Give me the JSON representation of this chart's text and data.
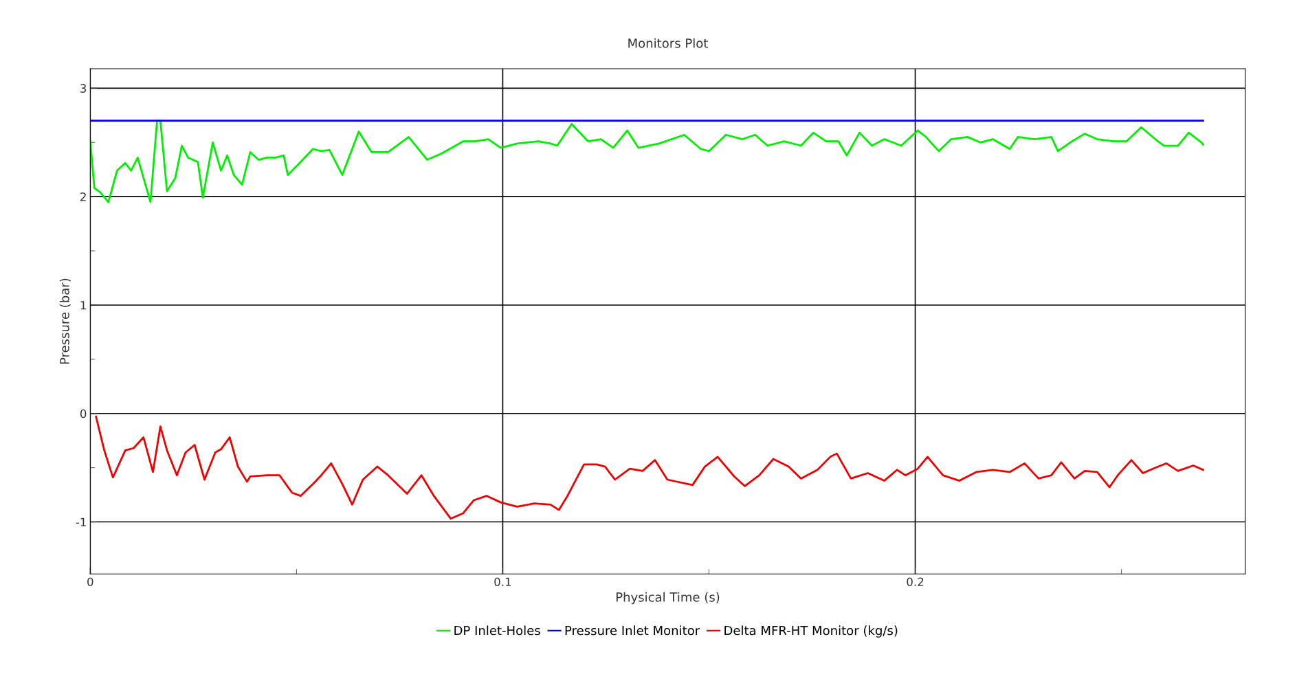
{
  "chart_data": {
    "type": "line",
    "title": "Monitors Plot",
    "xlabel": "Physical Time (s)",
    "ylabel": "Pressure (bar)",
    "xlim": [
      0,
      0.28
    ],
    "ylim": [
      -1.48,
      3.18
    ],
    "xticks": [
      0,
      0.1,
      0.2,
      {
        "value": 0.05,
        "label": null
      },
      {
        "value": 0.15,
        "label": null
      },
      {
        "value": 0.25,
        "label": null
      }
    ],
    "yticks": [
      -1,
      0,
      1,
      2,
      3,
      {
        "value": -0.5,
        "label": null
      },
      {
        "value": 0.5,
        "label": null
      },
      {
        "value": 1.5,
        "label": null
      },
      {
        "value": 2.5,
        "label": null
      }
    ],
    "grid": true,
    "legend": "bottom",
    "marker": "none",
    "line_style": "solid",
    "series": [
      {
        "name": "DP Inlet-Holes",
        "color": "#00ee00",
        "x": [
          0,
          0.001,
          0.0024,
          0.0044,
          0.0065,
          0.0085,
          0.0099,
          0.0115,
          0.0146,
          0.0162,
          0.017,
          0.0186,
          0.0206,
          0.0222,
          0.0237,
          0.0261,
          0.0273,
          0.0297,
          0.0317,
          0.0332,
          0.0348,
          0.0368,
          0.0388,
          0.0408,
          0.0429,
          0.0449,
          0.0469,
          0.0479,
          0.051,
          0.054,
          0.056,
          0.058,
          0.0611,
          0.0651,
          0.0682,
          0.0722,
          0.0772,
          0.0817,
          0.0853,
          0.0904,
          0.0934,
          0.0965,
          0.0995,
          0.1035,
          0.1086,
          0.1116,
          0.1132,
          0.1167,
          0.1207,
          0.1238,
          0.1268,
          0.1302,
          0.1329,
          0.1379,
          0.144,
          0.148,
          0.15,
          0.1541,
          0.1581,
          0.1612,
          0.1642,
          0.1682,
          0.1723,
          0.1753,
          0.1784,
          0.1814,
          0.1834,
          0.1865,
          0.1895,
          0.1925,
          0.1966,
          0.2006,
          0.2026,
          0.2057,
          0.2087,
          0.2127,
          0.2158,
          0.2188,
          0.2229,
          0.2249,
          0.2289,
          0.233,
          0.2346,
          0.238,
          0.2411,
          0.2441,
          0.2481,
          0.2512,
          0.2548,
          0.2582,
          0.2603,
          0.2637,
          0.2663,
          0.2694,
          0.2698
        ],
        "values": [
          2.51,
          2.08,
          2.04,
          1.95,
          2.24,
          2.31,
          2.24,
          2.36,
          1.95,
          2.7,
          2.7,
          2.05,
          2.17,
          2.47,
          2.36,
          2.32,
          1.99,
          2.5,
          2.24,
          2.38,
          2.2,
          2.11,
          2.41,
          2.34,
          2.36,
          2.36,
          2.38,
          2.2,
          2.32,
          2.44,
          2.42,
          2.43,
          2.2,
          2.6,
          2.41,
          2.41,
          2.55,
          2.34,
          2.4,
          2.51,
          2.51,
          2.53,
          2.45,
          2.49,
          2.51,
          2.49,
          2.47,
          2.67,
          2.51,
          2.53,
          2.45,
          2.61,
          2.45,
          2.49,
          2.57,
          2.44,
          2.42,
          2.57,
          2.53,
          2.57,
          2.47,
          2.51,
          2.47,
          2.59,
          2.51,
          2.51,
          2.38,
          2.59,
          2.47,
          2.53,
          2.47,
          2.61,
          2.55,
          2.42,
          2.53,
          2.55,
          2.5,
          2.53,
          2.44,
          2.55,
          2.53,
          2.55,
          2.42,
          2.51,
          2.58,
          2.53,
          2.51,
          2.51,
          2.64,
          2.53,
          2.47,
          2.47,
          2.59,
          2.5,
          2.48
        ]
      },
      {
        "name": "Pressure Inlet Monitor",
        "color": "#0000ee",
        "x": [
          0,
          0.2698
        ],
        "values": [
          2.7,
          2.7
        ]
      },
      {
        "name": "Delta MFR-HT Monitor (kg/s)",
        "color": "#ee0000",
        "x": [
          0.0014,
          0.0034,
          0.0055,
          0.0085,
          0.0105,
          0.0129,
          0.0152,
          0.017,
          0.0186,
          0.021,
          0.0231,
          0.0253,
          0.0277,
          0.0303,
          0.0317,
          0.0338,
          0.0358,
          0.038,
          0.0388,
          0.0429,
          0.0459,
          0.0489,
          0.051,
          0.054,
          0.056,
          0.0584,
          0.0611,
          0.0635,
          0.0661,
          0.0696,
          0.0722,
          0.0768,
          0.0803,
          0.0833,
          0.0874,
          0.0904,
          0.093,
          0.0961,
          0.0995,
          0.1035,
          0.1076,
          0.1116,
          0.1136,
          0.1157,
          0.1197,
          0.1228,
          0.1248,
          0.1272,
          0.1308,
          0.1339,
          0.1369,
          0.1399,
          0.146,
          0.149,
          0.1521,
          0.1561,
          0.1587,
          0.1622,
          0.1656,
          0.1693,
          0.1723,
          0.1763,
          0.1794,
          0.181,
          0.1844,
          0.1885,
          0.1925,
          0.1956,
          0.1976,
          0.2006,
          0.203,
          0.2067,
          0.2107,
          0.2148,
          0.2188,
          0.2229,
          0.2265,
          0.2299,
          0.233,
          0.2354,
          0.2386,
          0.2411,
          0.2441,
          0.2471,
          0.2491,
          0.2524,
          0.2552,
          0.2576,
          0.2609,
          0.2637,
          0.2674,
          0.2698
        ],
        "values": [
          -0.03,
          -0.34,
          -0.59,
          -0.34,
          -0.32,
          -0.22,
          -0.54,
          -0.12,
          -0.34,
          -0.57,
          -0.36,
          -0.29,
          -0.61,
          -0.36,
          -0.33,
          -0.22,
          -0.49,
          -0.63,
          -0.58,
          -0.57,
          -0.57,
          -0.73,
          -0.76,
          -0.65,
          -0.57,
          -0.46,
          -0.65,
          -0.84,
          -0.61,
          -0.49,
          -0.57,
          -0.74,
          -0.57,
          -0.76,
          -0.97,
          -0.92,
          -0.8,
          -0.76,
          -0.82,
          -0.86,
          -0.83,
          -0.84,
          -0.89,
          -0.76,
          -0.47,
          -0.47,
          -0.49,
          -0.61,
          -0.51,
          -0.53,
          -0.43,
          -0.61,
          -0.66,
          -0.49,
          -0.4,
          -0.58,
          -0.67,
          -0.57,
          -0.42,
          -0.49,
          -0.6,
          -0.52,
          -0.4,
          -0.37,
          -0.6,
          -0.55,
          -0.62,
          -0.52,
          -0.57,
          -0.51,
          -0.4,
          -0.57,
          -0.62,
          -0.54,
          -0.52,
          -0.54,
          -0.46,
          -0.6,
          -0.57,
          -0.45,
          -0.6,
          -0.53,
          -0.54,
          -0.68,
          -0.57,
          -0.43,
          -0.55,
          -0.51,
          -0.46,
          -0.53,
          -0.48,
          -0.52
        ]
      }
    ]
  }
}
